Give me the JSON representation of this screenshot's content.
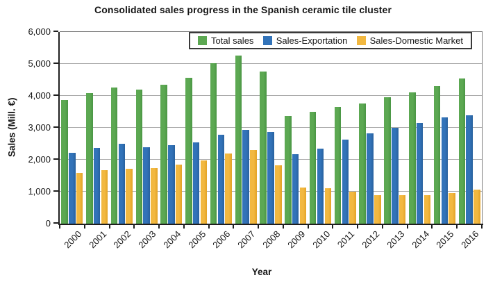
{
  "title": "Consolidated sales progress in the Spanish ceramic tile cluster",
  "chart_data": {
    "type": "bar",
    "title": "Consolidated sales progress in the Spanish ceramic tile cluster",
    "xlabel": "Year",
    "ylabel": "Sales (Mill. €)",
    "ylim": [
      0,
      6000
    ],
    "ytick_step": 1000,
    "ytick_labels": [
      "0",
      "1,000",
      "2,000",
      "3,000",
      "4,000",
      "5,000",
      "6,000"
    ],
    "grid": true,
    "legend_position": "top-center-inside",
    "axis_color": "#1f1f1f",
    "gridline_color": "#ababab",
    "categories": [
      "2000",
      "2001",
      "2002",
      "2003",
      "2004",
      "2005",
      "2006",
      "2007",
      "2008",
      "2009",
      "2010",
      "2011",
      "2012",
      "2013",
      "2014",
      "2015",
      "2016"
    ],
    "series": [
      {
        "name": "Total sales",
        "color": "#5ca852",
        "color_dark": "#4a9644",
        "values": [
          3870,
          4090,
          4270,
          4200,
          4350,
          4560,
          5020,
          5260,
          4770,
          3380,
          3500,
          3660,
          3760,
          3960,
          4110,
          4300,
          4540
        ]
      },
      {
        "name": "Sales-Exportation",
        "color": "#3273b9",
        "color_dark": "#28619e",
        "values": [
          2220,
          2380,
          2490,
          2390,
          2450,
          2550,
          2780,
          2930,
          2880,
          2170,
          2350,
          2620,
          2830,
          3010,
          3160,
          3330,
          3400
        ]
      },
      {
        "name": "Sales-Domestic Market",
        "color": "#f2b840",
        "color_dark": "#e3a327",
        "values": [
          1590,
          1670,
          1710,
          1730,
          1850,
          1980,
          2200,
          2310,
          1830,
          1130,
          1100,
          1010,
          890,
          900,
          900,
          950,
          1060
        ]
      }
    ]
  }
}
